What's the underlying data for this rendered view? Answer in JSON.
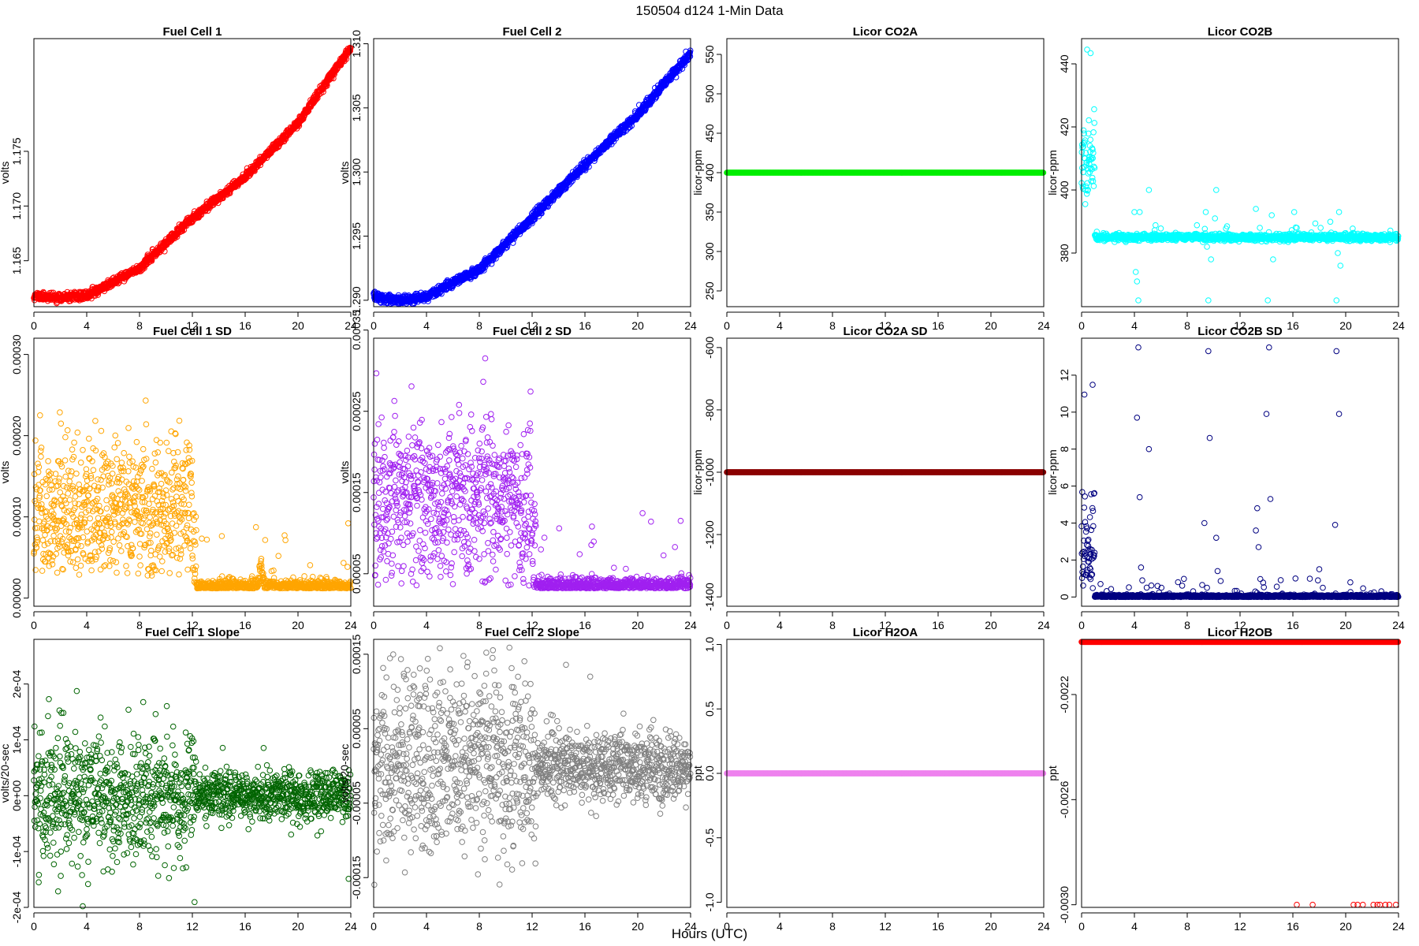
{
  "figure": {
    "title": "150504   d124   1-Min Data",
    "xlabel": "Hours (UTC)"
  },
  "chart_data": [
    {
      "type": "scatter",
      "title": "Fuel Cell 1",
      "ylabel": "volts",
      "color": "#ff0000",
      "xlim": [
        0,
        24
      ],
      "ylim": [
        1.1608,
        1.1853
      ],
      "xticks": [
        0,
        4,
        8,
        12,
        16,
        20,
        24
      ],
      "yticks": [
        1.165,
        1.17,
        1.175
      ],
      "ytick_labels": [
        "1.165",
        "1.170",
        "1.175"
      ],
      "gen": {
        "kind": "line",
        "x": [
          0,
          1,
          2,
          3,
          4,
          8,
          12,
          16,
          20,
          24
        ],
        "y": [
          1.1618,
          1.1617,
          1.1616,
          1.1617,
          1.1618,
          1.1643,
          1.1689,
          1.1727,
          1.1776,
          1.1845
        ],
        "noise": 0.00018,
        "n": 1440,
        "seed": 11
      }
    },
    {
      "type": "scatter",
      "title": "Fuel Cell 2",
      "ylabel": "volts",
      "color": "#0000ff",
      "xlim": [
        0,
        24
      ],
      "ylim": [
        1.2895,
        1.3104
      ],
      "xticks": [
        0,
        4,
        8,
        12,
        16,
        20,
        24
      ],
      "yticks": [
        1.29,
        1.295,
        1.3,
        1.305,
        1.31
      ],
      "ytick_labels": [
        "1.290",
        "1.295",
        "1.300",
        "1.305",
        "1.310"
      ],
      "gen": {
        "kind": "line",
        "x": [
          0,
          1,
          2,
          3,
          4,
          8,
          12,
          16,
          20,
          24
        ],
        "y": [
          1.2903,
          1.2901,
          1.29,
          1.2901,
          1.2903,
          1.2924,
          1.2964,
          1.3006,
          1.3045,
          1.3093
        ],
        "noise": 0.00016,
        "n": 1440,
        "seed": 12
      }
    },
    {
      "type": "scatter",
      "title": "Licor CO2A",
      "ylabel": "licor-ppm",
      "color": "#00ee00",
      "xlim": [
        0,
        24
      ],
      "ylim": [
        230,
        570
      ],
      "xticks": [
        0,
        4,
        8,
        12,
        16,
        20,
        24
      ],
      "yticks": [
        250,
        300,
        350,
        400,
        450,
        500,
        550
      ],
      "ytick_labels": [
        "250",
        "300",
        "350",
        "400",
        "450",
        "500",
        "550"
      ],
      "gen": {
        "kind": "const",
        "value": 400,
        "n": 1440
      }
    },
    {
      "type": "scatter",
      "title": "Licor CO2B",
      "ylabel": "licor-ppm",
      "color": "#00ffff",
      "xlim": [
        0,
        24
      ],
      "ylim": [
        363,
        448
      ],
      "xticks": [
        0,
        4,
        8,
        12,
        16,
        20,
        24
      ],
      "yticks": [
        380,
        400,
        420,
        440
      ],
      "ytick_labels": [
        "380",
        "400",
        "420",
        "440"
      ],
      "gen": {
        "kind": "co2b",
        "n": 1440,
        "seed": 14
      }
    },
    {
      "type": "scatter",
      "title": "Fuel Cell 1 SD",
      "ylabel": "volts",
      "color": "#ffa500",
      "xlim": [
        0,
        24
      ],
      "ylim": [
        -1e-05,
        0.00032
      ],
      "xticks": [
        0,
        4,
        8,
        12,
        16,
        20,
        24
      ],
      "yticks": [
        0,
        0.0001,
        0.0002,
        0.0003
      ],
      "ytick_labels": [
        "0.00000",
        "0.00010",
        "0.00020",
        "0.00030"
      ],
      "gen": {
        "kind": "sd",
        "split": 12.3,
        "hiMean": 0.00011,
        "hiSd": 4.5e-05,
        "loMean": 1.2e-05,
        "loSd": 4e-06,
        "n": 1440,
        "seed": 21,
        "bumps": [
          [
            17.2,
            4e-05
          ]
        ]
      }
    },
    {
      "type": "scatter",
      "title": "Fuel Cell 2 SD",
      "ylabel": "volts",
      "color": "#a020f0",
      "xlim": [
        0,
        24
      ],
      "ylim": [
        1e-05,
        0.00034
      ],
      "xticks": [
        0,
        4,
        8,
        12,
        16,
        20,
        24
      ],
      "yticks": [
        5e-05,
        0.00015,
        0.00025,
        0.00035
      ],
      "ytick_labels": [
        "0.00005",
        "0.00015",
        "0.00025",
        "0.00035"
      ],
      "gen": {
        "kind": "sd",
        "split": 12.3,
        "hiMean": 0.00014,
        "hiSd": 5e-05,
        "loMean": 3.2e-05,
        "loSd": 5e-06,
        "n": 1440,
        "seed": 22,
        "bumps": []
      }
    },
    {
      "type": "scatter",
      "title": "Licor CO2A SD",
      "ylabel": "licor-ppm",
      "color": "#8b0000",
      "xlim": [
        0,
        24
      ],
      "ylim": [
        -1430,
        -570
      ],
      "xticks": [
        0,
        4,
        8,
        12,
        16,
        20,
        24
      ],
      "yticks": [
        -1400,
        -1200,
        -1000,
        -800,
        -600
      ],
      "ytick_labels": [
        "-1400",
        "-1200",
        "-1000",
        "-800",
        "-600"
      ],
      "gen": {
        "kind": "const",
        "value": -1000,
        "n": 1440
      }
    },
    {
      "type": "scatter",
      "title": "Licor CO2B SD",
      "ylabel": "licor-ppm",
      "color": "#000080",
      "xlim": [
        0,
        24
      ],
      "ylim": [
        -0.5,
        14
      ],
      "xticks": [
        0,
        4,
        8,
        12,
        16,
        20,
        24
      ],
      "yticks": [
        0,
        2,
        4,
        6,
        8,
        10,
        12
      ],
      "ytick_labels": [
        "0",
        "2",
        "4",
        "6",
        "8",
        "10",
        "12"
      ],
      "gen": {
        "kind": "co2bsd",
        "n": 1440,
        "seed": 24
      }
    },
    {
      "type": "scatter",
      "title": "Fuel Cell 1 Slope",
      "ylabel": "volts/20-sec",
      "color": "#006400",
      "xlim": [
        0,
        24
      ],
      "ylim": [
        -0.0002,
        0.00028
      ],
      "xticks": [
        0,
        4,
        8,
        12,
        16,
        20,
        24
      ],
      "yticks": [
        -0.0002,
        -0.0001,
        0,
        0.0001,
        0.0002
      ],
      "ytick_labels": [
        "-2e-04",
        "-1e-04",
        "0e+00",
        "1e-04",
        "2e-04"
      ],
      "gen": {
        "kind": "slope",
        "split": 12.3,
        "hiSd": 6e-05,
        "loSd": 2.2e-05,
        "n": 1440,
        "seed": 31,
        "cap": 0.00026
      }
    },
    {
      "type": "scatter",
      "title": "Fuel Cell 2 Slope",
      "ylabel": "volts/20-sec",
      "color": "#808080",
      "xlim": [
        0,
        24
      ],
      "ylim": [
        -0.00019,
        0.00017
      ],
      "xticks": [
        0,
        4,
        8,
        12,
        16,
        20,
        24
      ],
      "yticks": [
        -0.00015,
        -5e-05,
        5e-05,
        0.00015
      ],
      "ytick_labels": [
        "-0.00015",
        "-0.00005",
        "0.00005",
        "0.00015"
      ],
      "gen": {
        "kind": "slope",
        "split": 12.3,
        "hiSd": 6e-05,
        "loSd": 2.2e-05,
        "n": 1440,
        "seed": 32,
        "cap": 0.000165
      }
    },
    {
      "type": "scatter",
      "title": "Licor H2OA",
      "ylabel": "ppt",
      "color": "#ee82ee",
      "xlim": [
        0,
        24
      ],
      "ylim": [
        -1.04,
        1.04
      ],
      "xticks": [
        0,
        4,
        8,
        12,
        16,
        20,
        24
      ],
      "yticks": [
        -1,
        -0.5,
        0,
        0.5,
        1
      ],
      "ytick_labels": [
        "-1.0",
        "-0.5",
        "0.0",
        "0.5",
        "1.0"
      ],
      "gen": {
        "kind": "const",
        "value": 0,
        "n": 1440
      }
    },
    {
      "type": "scatter",
      "title": "Licor H2OB",
      "ylabel": "ppt",
      "color": "#ff0000",
      "xlim": [
        0,
        24
      ],
      "ylim": [
        -0.00301,
        -0.00199
      ],
      "xticks": [
        0,
        4,
        8,
        12,
        16,
        20,
        24
      ],
      "yticks": [
        -0.003,
        -0.0026,
        -0.0022
      ],
      "ytick_labels": [
        "-0.0030",
        "-0.0026",
        "-0.0022"
      ],
      "gen": {
        "kind": "h2ob",
        "value": -0.002,
        "outlier": -0.003,
        "outliers": [
          16.3,
          17.5,
          20.6,
          20.9,
          21.3,
          22.1,
          22.4,
          22.6,
          23.0,
          23.3,
          23.8
        ],
        "n": 1440
      }
    }
  ]
}
